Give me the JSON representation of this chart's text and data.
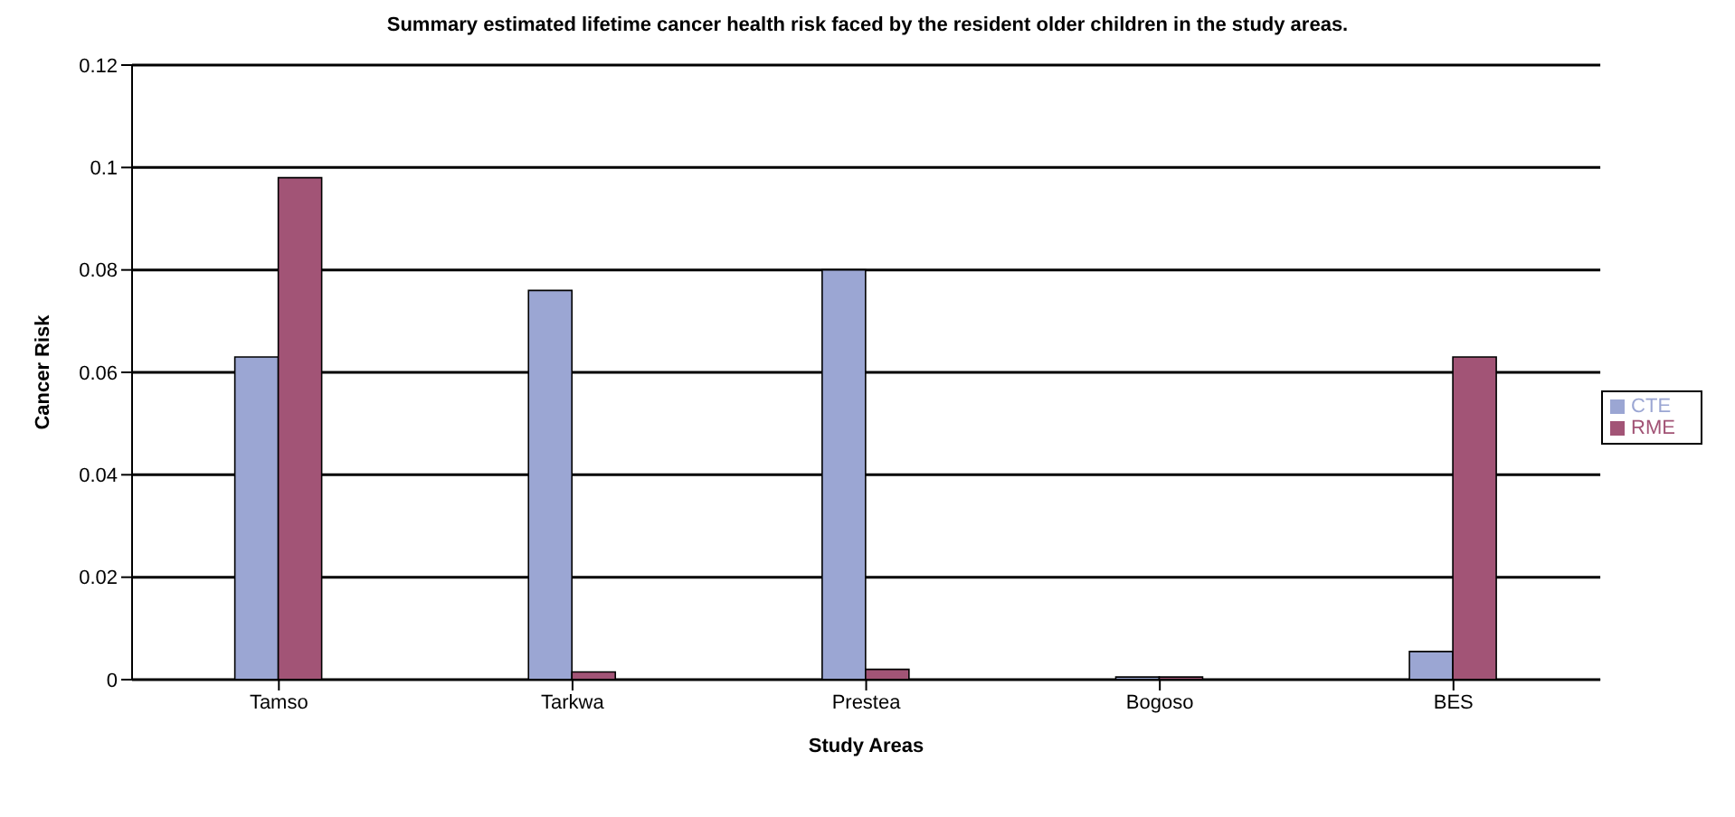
{
  "chart_data": {
    "type": "bar",
    "title": "Summary estimated lifetime cancer health risk faced by the resident older children in the study areas.",
    "xlabel": "Study  Areas",
    "ylabel": "Cancer Risk",
    "categories": [
      "Tamso",
      "Tarkwa",
      "Prestea",
      "Bogoso",
      "BES"
    ],
    "series": [
      {
        "name": "CTE",
        "color": "#9ba6d3",
        "values": [
          0.063,
          0.076,
          0.08,
          0.0005,
          0.0055
        ]
      },
      {
        "name": "RME",
        "color": "#a25476",
        "values": [
          0.098,
          0.0015,
          0.002,
          0.0005,
          0.063
        ]
      }
    ],
    "ylim": [
      0,
      0.12
    ],
    "yticks": [
      0,
      0.02,
      0.04,
      0.06,
      0.08,
      0.1,
      0.12
    ],
    "grid": "y",
    "legend": "right"
  }
}
